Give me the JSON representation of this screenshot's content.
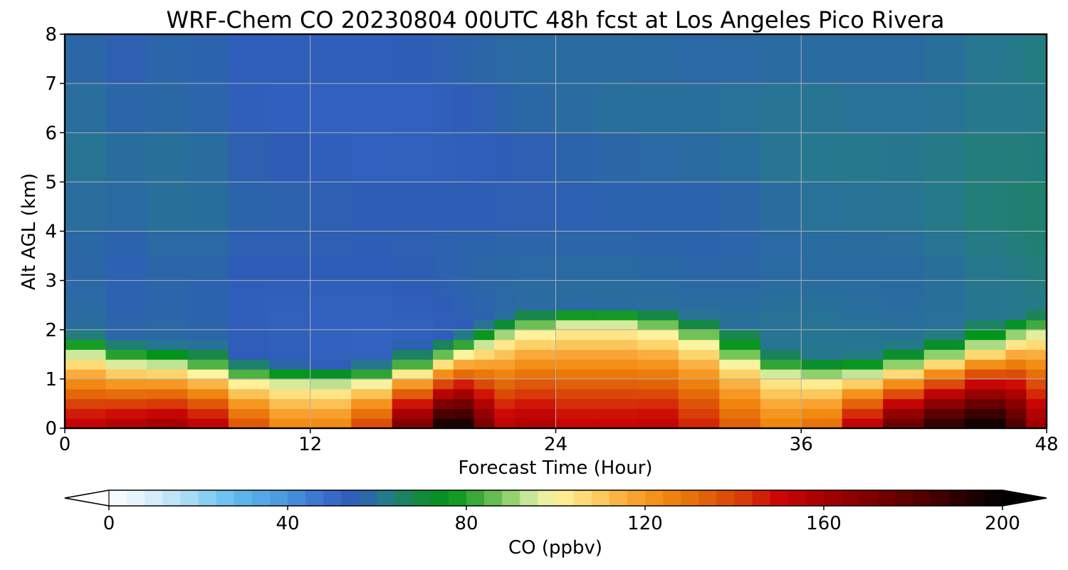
{
  "chart_data": {
    "type": "heatmap",
    "title": "WRF-Chem CO  20230804 00UTC 48h fcst at Los Angeles Pico Rivera",
    "xlabel": "Forecast Time (Hour)",
    "ylabel": "Alt AGL (km)",
    "xlim": [
      0,
      48
    ],
    "ylim": [
      0,
      8
    ],
    "xticks": [
      0,
      12,
      24,
      36,
      48
    ],
    "yticks": [
      0,
      1,
      2,
      3,
      4,
      5,
      6,
      7,
      8
    ],
    "grid": true,
    "colorbar": {
      "label": "CO  (ppbv)",
      "min": 0,
      "max": 200,
      "ticks": [
        0,
        40,
        80,
        120,
        160,
        200
      ],
      "extend": "both",
      "stops": [
        {
          "v": 0,
          "c": "#ffffff"
        },
        {
          "v": 8,
          "c": "#e0f0fb"
        },
        {
          "v": 16,
          "c": "#b7def6"
        },
        {
          "v": 24,
          "c": "#7cc8f2"
        },
        {
          "v": 30,
          "c": "#5cb6ec"
        },
        {
          "v": 40,
          "c": "#4a94dc"
        },
        {
          "v": 48,
          "c": "#3a6fcf"
        },
        {
          "v": 55,
          "c": "#2e5cb8"
        },
        {
          "v": 62,
          "c": "#257a8a"
        },
        {
          "v": 70,
          "c": "#138a3c"
        },
        {
          "v": 76,
          "c": "#00941a"
        },
        {
          "v": 82,
          "c": "#3aa83a"
        },
        {
          "v": 88,
          "c": "#7cc85a"
        },
        {
          "v": 94,
          "c": "#c6e69a"
        },
        {
          "v": 100,
          "c": "#fff5a0"
        },
        {
          "v": 108,
          "c": "#fcd46a"
        },
        {
          "v": 116,
          "c": "#faa838"
        },
        {
          "v": 124,
          "c": "#f28a10"
        },
        {
          "v": 132,
          "c": "#e46a08"
        },
        {
          "v": 142,
          "c": "#d83a08"
        },
        {
          "v": 150,
          "c": "#cc0606"
        },
        {
          "v": 160,
          "c": "#a60000"
        },
        {
          "v": 172,
          "c": "#780000"
        },
        {
          "v": 184,
          "c": "#480000"
        },
        {
          "v": 196,
          "c": "#120000"
        },
        {
          "v": 200,
          "c": "#000000"
        }
      ]
    },
    "field": {
      "x": [
        0,
        2,
        4,
        6,
        8,
        10,
        12,
        14,
        16,
        18,
        19,
        20,
        21,
        22,
        24,
        26,
        28,
        30,
        32,
        34,
        36,
        38,
        40,
        42,
        44,
        46,
        47,
        48
      ],
      "y": [
        0,
        0.2,
        0.4,
        0.6,
        0.8,
        1.0,
        1.2,
        1.4,
        1.6,
        1.8,
        2.0,
        2.2,
        2.4,
        2.7,
        3.0,
        3.5,
        4.0,
        5.0,
        6.0,
        7.0,
        8.0
      ],
      "surface_peak_ppbv": [
        150,
        158,
        158,
        165,
        145,
        130,
        120,
        130,
        150,
        195,
        198,
        195,
        150,
        160,
        155,
        150,
        155,
        152,
        140,
        130,
        122,
        140,
        170,
        185,
        198,
        198,
        170,
        155
      ],
      "mixing_depth_km": [
        1.55,
        1.4,
        1.2,
        1.3,
        1.0,
        0.9,
        0.85,
        0.85,
        1.0,
        1.3,
        1.45,
        1.6,
        1.75,
        1.9,
        2.05,
        2.1,
        2.05,
        1.9,
        1.65,
        1.2,
        1.0,
        1.0,
        1.1,
        1.3,
        1.5,
        1.75,
        1.85,
        1.95
      ],
      "aloft_ppbv": [
        60,
        58,
        57,
        60,
        56,
        55,
        55,
        54,
        54,
        55,
        55,
        56,
        56,
        57,
        57,
        58,
        58,
        58,
        58,
        59,
        60,
        60,
        60,
        60,
        62,
        63,
        63,
        64
      ]
    }
  }
}
